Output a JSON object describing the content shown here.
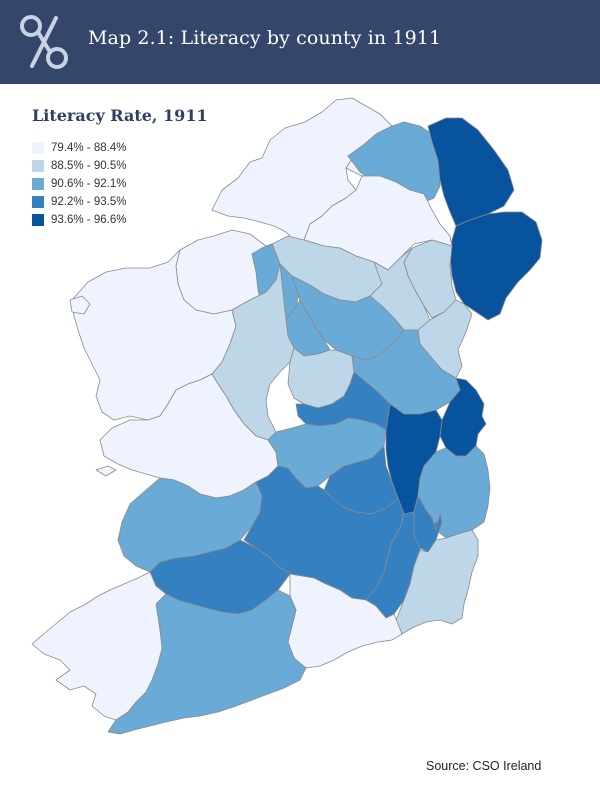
{
  "header": {
    "title": "Map 2.1: Literacy by county in 1911",
    "logo_icon": "scissors-loop-logo-icon",
    "background": "#34466a"
  },
  "legend": {
    "title": "Literacy Rate, 1911",
    "items": [
      {
        "label": "79.4% - 88.4%",
        "color": "#eef3fd"
      },
      {
        "label": "88.5% - 90.5%",
        "color": "#bdd6e8"
      },
      {
        "label": "90.6% - 92.1%",
        "color": "#6aaad6"
      },
      {
        "label": "92.2% - 93.5%",
        "color": "#3580c0"
      },
      {
        "label": "93.6% - 96.6%",
        "color": "#08539e"
      }
    ]
  },
  "source": "Source:  CSO Ireland"
}
